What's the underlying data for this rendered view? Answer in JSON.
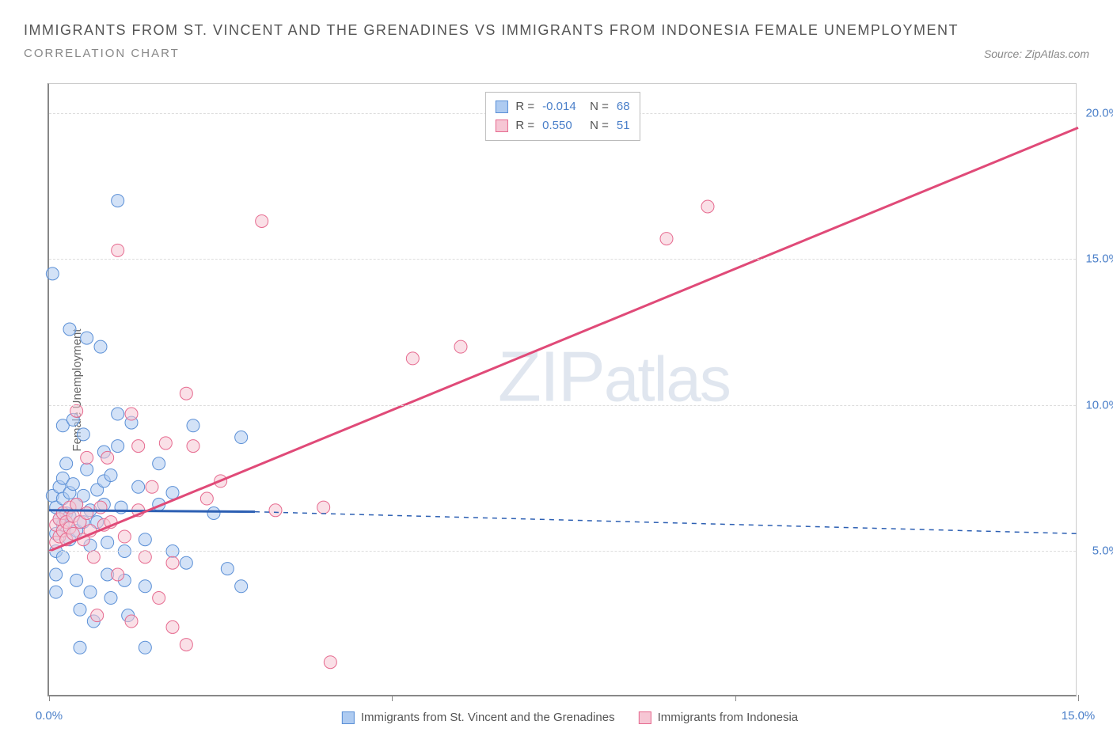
{
  "header": {
    "title": "IMMIGRANTS FROM ST. VINCENT AND THE GRENADINES VS IMMIGRANTS FROM INDONESIA FEMALE UNEMPLOYMENT",
    "subtitle": "CORRELATION CHART",
    "source_label": "Source:",
    "source_name": "ZipAtlas.com"
  },
  "watermark": {
    "part1": "ZIP",
    "part2": "atlas"
  },
  "chart": {
    "type": "scatter",
    "y_axis_label": "Female Unemployment",
    "xlim": [
      0,
      15
    ],
    "ylim": [
      0,
      21
    ],
    "y_ticks": [
      {
        "v": 5,
        "label": "5.0%"
      },
      {
        "v": 10,
        "label": "10.0%"
      },
      {
        "v": 15,
        "label": "15.0%"
      },
      {
        "v": 20,
        "label": "20.0%"
      }
    ],
    "x_ticks": [
      {
        "v": 0,
        "label": "0.0%"
      },
      {
        "v": 5,
        "label": ""
      },
      {
        "v": 10,
        "label": ""
      },
      {
        "v": 15,
        "label": "15.0%"
      }
    ],
    "grid_color": "#dddddd",
    "axis_color": "#888888",
    "label_color": "#4a7fc9",
    "marker_radius": 8,
    "marker_opacity": 0.55,
    "line_width": 2,
    "series": [
      {
        "name": "Immigrants from St. Vincent and the Grenadines",
        "color_fill": "#aecbf1",
        "color_stroke": "#5a8fd6",
        "line_color": "#2c5fb3",
        "R": "-0.014",
        "N": "68",
        "trend": {
          "x1": 0.0,
          "y1": 6.4,
          "x2": 3.0,
          "y2": 6.35,
          "solid_to_x": 3.0,
          "dash_to_x": 15.0,
          "dash_y2": 5.6
        },
        "points": [
          [
            0.05,
            14.5
          ],
          [
            0.05,
            6.9
          ],
          [
            0.1,
            6.5
          ],
          [
            0.1,
            5.6
          ],
          [
            0.1,
            5.0
          ],
          [
            0.1,
            4.2
          ],
          [
            0.1,
            3.6
          ],
          [
            0.15,
            7.2
          ],
          [
            0.15,
            6.1
          ],
          [
            0.2,
            9.3
          ],
          [
            0.2,
            7.5
          ],
          [
            0.2,
            6.8
          ],
          [
            0.2,
            5.9
          ],
          [
            0.2,
            4.8
          ],
          [
            0.25,
            8.0
          ],
          [
            0.25,
            6.3
          ],
          [
            0.3,
            12.6
          ],
          [
            0.3,
            7.0
          ],
          [
            0.3,
            6.2
          ],
          [
            0.3,
            5.4
          ],
          [
            0.35,
            9.5
          ],
          [
            0.35,
            7.3
          ],
          [
            0.4,
            6.6
          ],
          [
            0.4,
            5.7
          ],
          [
            0.4,
            4.0
          ],
          [
            0.45,
            3.0
          ],
          [
            0.45,
            1.7
          ],
          [
            0.5,
            9.0
          ],
          [
            0.5,
            6.9
          ],
          [
            0.5,
            6.0
          ],
          [
            0.55,
            12.3
          ],
          [
            0.55,
            7.8
          ],
          [
            0.6,
            6.4
          ],
          [
            0.6,
            5.2
          ],
          [
            0.6,
            3.6
          ],
          [
            0.65,
            2.6
          ],
          [
            0.7,
            7.1
          ],
          [
            0.7,
            6.0
          ],
          [
            0.75,
            12.0
          ],
          [
            0.8,
            8.4
          ],
          [
            0.8,
            7.4
          ],
          [
            0.8,
            6.6
          ],
          [
            0.85,
            5.3
          ],
          [
            0.85,
            4.2
          ],
          [
            0.9,
            3.4
          ],
          [
            0.9,
            7.6
          ],
          [
            1.0,
            17.0
          ],
          [
            1.0,
            9.7
          ],
          [
            1.0,
            8.6
          ],
          [
            1.05,
            6.5
          ],
          [
            1.1,
            5.0
          ],
          [
            1.1,
            4.0
          ],
          [
            1.15,
            2.8
          ],
          [
            1.2,
            9.4
          ],
          [
            1.3,
            7.2
          ],
          [
            1.4,
            5.4
          ],
          [
            1.4,
            3.8
          ],
          [
            1.4,
            1.7
          ],
          [
            1.6,
            8.0
          ],
          [
            1.6,
            6.6
          ],
          [
            1.8,
            7.0
          ],
          [
            1.8,
            5.0
          ],
          [
            2.0,
            4.6
          ],
          [
            2.1,
            9.3
          ],
          [
            2.4,
            6.3
          ],
          [
            2.6,
            4.4
          ],
          [
            2.8,
            8.9
          ],
          [
            2.8,
            3.8
          ]
        ]
      },
      {
        "name": "Immigrants from Indonesia",
        "color_fill": "#f6c6d4",
        "color_stroke": "#e66a8f",
        "line_color": "#e04a78",
        "R": "0.550",
        "N": "51",
        "trend": {
          "x1": 0.0,
          "y1": 5.0,
          "x2": 15.0,
          "y2": 19.5,
          "solid_to_x": 15.0
        },
        "points": [
          [
            0.1,
            5.9
          ],
          [
            0.1,
            5.3
          ],
          [
            0.15,
            6.1
          ],
          [
            0.15,
            5.5
          ],
          [
            0.2,
            6.3
          ],
          [
            0.2,
            5.7
          ],
          [
            0.25,
            6.0
          ],
          [
            0.25,
            5.4
          ],
          [
            0.3,
            6.5
          ],
          [
            0.3,
            5.8
          ],
          [
            0.35,
            6.2
          ],
          [
            0.35,
            5.6
          ],
          [
            0.4,
            9.8
          ],
          [
            0.4,
            6.6
          ],
          [
            0.45,
            6.0
          ],
          [
            0.5,
            5.4
          ],
          [
            0.55,
            8.2
          ],
          [
            0.55,
            6.3
          ],
          [
            0.6,
            5.7
          ],
          [
            0.65,
            4.8
          ],
          [
            0.7,
            2.8
          ],
          [
            0.75,
            6.5
          ],
          [
            0.8,
            5.9
          ],
          [
            0.85,
            8.2
          ],
          [
            0.9,
            6.0
          ],
          [
            1.0,
            4.2
          ],
          [
            1.0,
            15.3
          ],
          [
            1.1,
            5.5
          ],
          [
            1.2,
            9.7
          ],
          [
            1.2,
            2.6
          ],
          [
            1.3,
            8.6
          ],
          [
            1.3,
            6.4
          ],
          [
            1.4,
            4.8
          ],
          [
            1.5,
            7.2
          ],
          [
            1.6,
            3.4
          ],
          [
            1.7,
            8.7
          ],
          [
            1.8,
            4.6
          ],
          [
            1.8,
            2.4
          ],
          [
            2.0,
            1.8
          ],
          [
            2.0,
            10.4
          ],
          [
            2.1,
            8.6
          ],
          [
            2.3,
            6.8
          ],
          [
            2.5,
            7.4
          ],
          [
            3.1,
            16.3
          ],
          [
            3.3,
            6.4
          ],
          [
            4.0,
            6.5
          ],
          [
            4.1,
            1.2
          ],
          [
            5.3,
            11.6
          ],
          [
            6.0,
            12.0
          ],
          [
            9.0,
            15.7
          ],
          [
            9.6,
            16.8
          ]
        ]
      }
    ]
  },
  "top_legend": {
    "r_label": "R =",
    "n_label": "N ="
  }
}
